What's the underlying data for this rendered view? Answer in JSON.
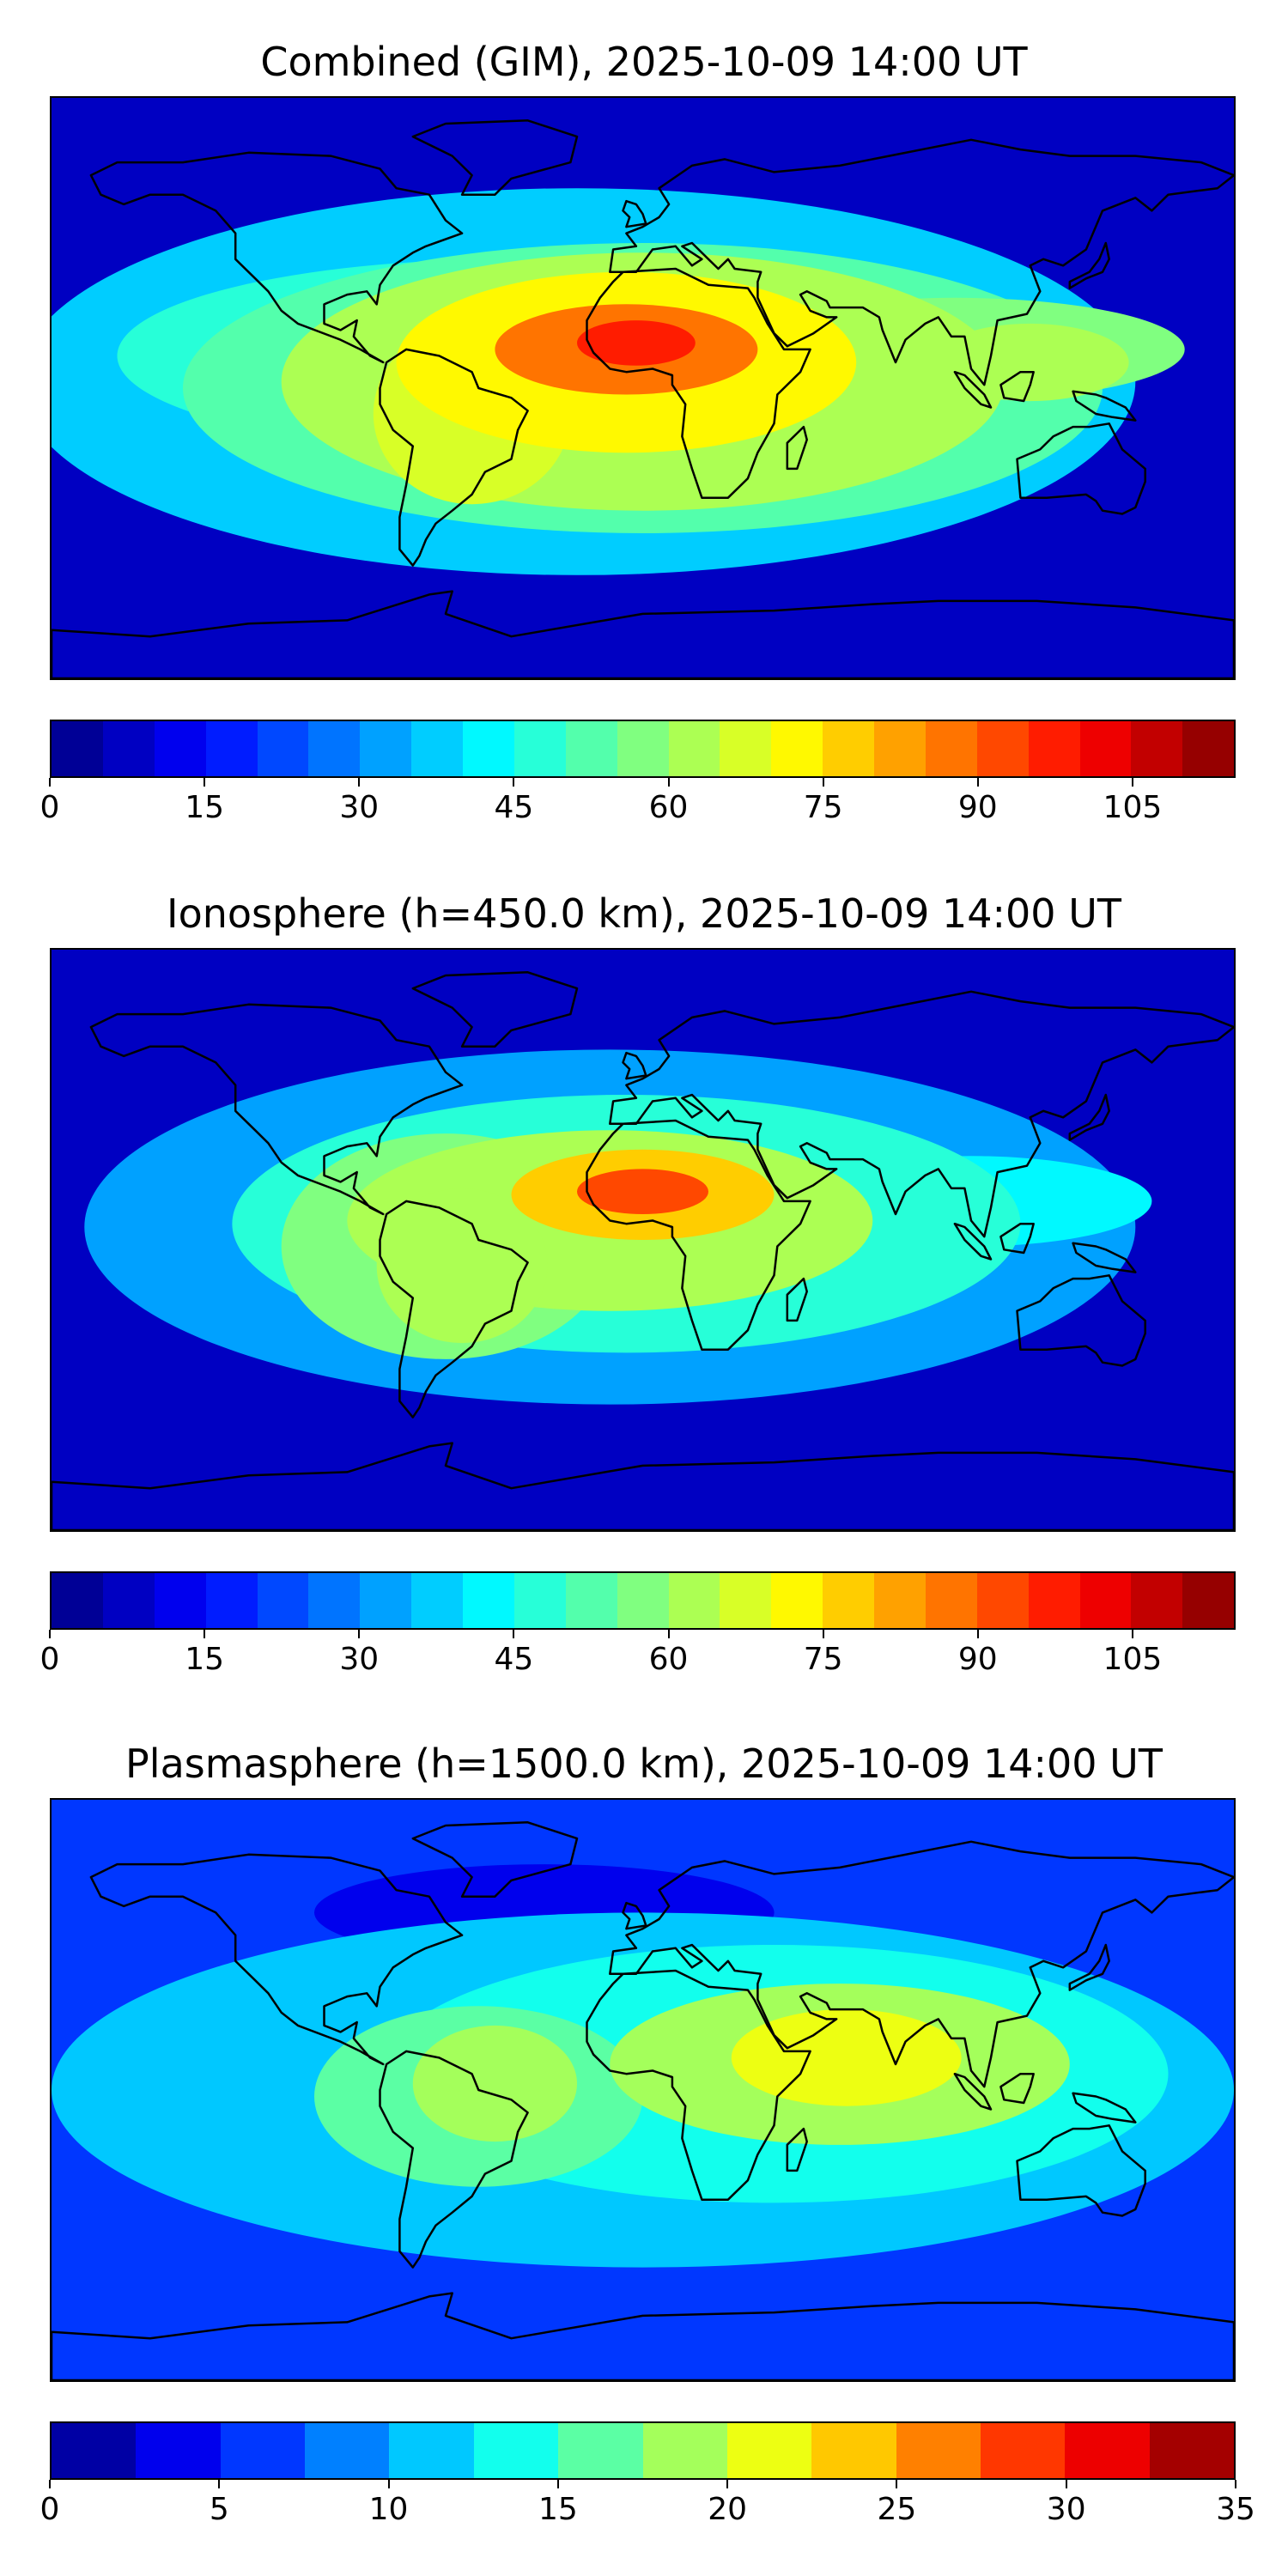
{
  "chart_data": [
    {
      "type": "heatmap",
      "title": "Combined (GIM), 2025-10-09 14:00 UT",
      "map": "world-equirectangular",
      "colormap": "jet",
      "colorbar": {
        "vmin": 0,
        "vmax": 115,
        "step": 5,
        "ticks": [
          0,
          15,
          30,
          45,
          60,
          75,
          90,
          105
        ]
      },
      "features": [
        {
          "name": "africa-peak",
          "lon": -5,
          "lat": 12,
          "value": 95
        },
        {
          "name": "south-america-crest",
          "lon": -50,
          "lat": -5,
          "value": 70
        },
        {
          "name": "indian-ocean-dip",
          "lon": 78,
          "lat": 4,
          "value": 40
        },
        {
          "name": "indonesia-band",
          "lon": 120,
          "lat": 5,
          "value": 60
        }
      ]
    },
    {
      "type": "heatmap",
      "title": "Ionosphere  (h=450.0 km), 2025-10-09 14:00 UT",
      "map": "world-equirectangular",
      "colormap": "jet",
      "colorbar": {
        "vmin": 0,
        "vmax": 115,
        "step": 5,
        "ticks": [
          0,
          15,
          30,
          45,
          60,
          75,
          90,
          105
        ]
      },
      "features": [
        {
          "name": "africa-peak",
          "lon": 0,
          "lat": 15,
          "value": 90
        },
        {
          "name": "south-america-crest",
          "lon": -50,
          "lat": -5,
          "value": 62
        },
        {
          "name": "indian-ocean-dip",
          "lon": 80,
          "lat": 4,
          "value": 15
        },
        {
          "name": "indonesia-band",
          "lon": 115,
          "lat": 8,
          "value": 45
        }
      ]
    },
    {
      "type": "heatmap",
      "title": "Plasmasphere (h=1500.0 km), 2025-10-09 14:00 UT",
      "map": "world-equirectangular",
      "colormap": "jet",
      "colorbar": {
        "vmin": 0,
        "vmax": 35,
        "step": 2.5,
        "ticks": [
          0,
          5,
          10,
          15,
          20,
          25,
          30,
          35
        ]
      },
      "features": [
        {
          "name": "arabia-indian-high",
          "lon": 60,
          "lat": 10,
          "value": 21
        },
        {
          "name": "south-america-high",
          "lon": -45,
          "lat": 0,
          "value": 18
        },
        {
          "name": "madagascar-low",
          "lon": 45,
          "lat": -18,
          "value": 7
        },
        {
          "name": "north-atlantic-low",
          "lon": -30,
          "lat": 55,
          "value": 2
        }
      ]
    }
  ]
}
